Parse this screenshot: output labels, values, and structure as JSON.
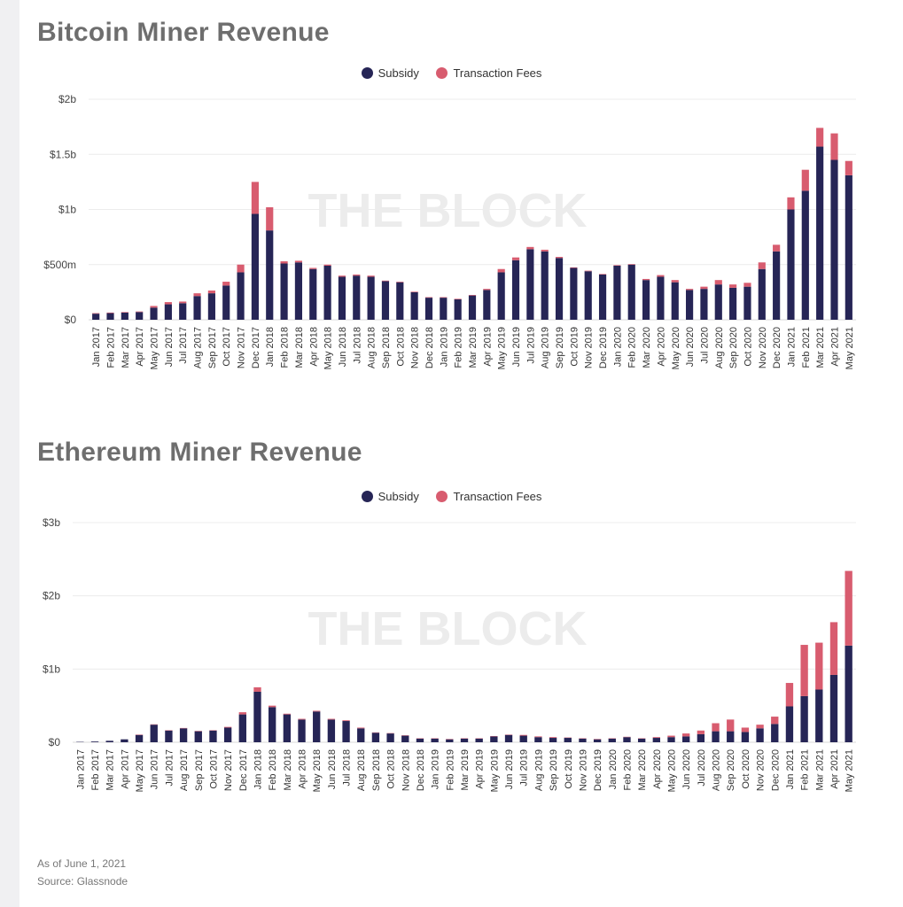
{
  "colors": {
    "subsidy": "#262556",
    "fees": "#d85c6f",
    "grid": "#ececec",
    "watermark": "#ececec"
  },
  "months": [
    "Jan 2017",
    "Feb 2017",
    "Mar 2017",
    "Apr 2017",
    "May 2017",
    "Jun 2017",
    "Jul 2017",
    "Aug 2017",
    "Sep 2017",
    "Oct 2017",
    "Nov 2017",
    "Dec 2017",
    "Jan 2018",
    "Feb 2018",
    "Mar 2018",
    "Apr 2018",
    "May 2018",
    "Jun 2018",
    "Jul 2018",
    "Aug 2018",
    "Sep 2018",
    "Oct 2018",
    "Nov 2018",
    "Dec 2018",
    "Jan 2019",
    "Feb 2019",
    "Mar 2019",
    "Apr 2019",
    "May 2019",
    "Jun 2019",
    "Jul 2019",
    "Aug 2019",
    "Sep 2019",
    "Oct 2019",
    "Nov 2019",
    "Dec 2019",
    "Jan 2020",
    "Feb 2020",
    "Mar 2020",
    "Apr 2020",
    "May 2020",
    "Jun 2020",
    "Jul 2020",
    "Aug 2020",
    "Sep 2020",
    "Oct 2020",
    "Nov 2020",
    "Dec 2020",
    "Jan 2021",
    "Feb 2021",
    "Mar 2021",
    "Apr 2021",
    "May 2021"
  ],
  "chart_data": [
    {
      "type": "bar",
      "stacked": true,
      "title": "Bitcoin Miner Revenue",
      "watermark": "THE BLOCK",
      "legend": [
        "Subsidy",
        "Transaction Fees"
      ],
      "ylim": [
        0,
        2000
      ],
      "yticks": [
        0,
        500,
        1000,
        1500,
        2000
      ],
      "ytick_labels": [
        "$0",
        "$500m",
        "$1b",
        "$1.5b",
        "$2b"
      ],
      "unit": "millions USD",
      "series": [
        {
          "name": "Subsidy",
          "values": [
            55,
            60,
            65,
            70,
            110,
            140,
            150,
            215,
            240,
            310,
            430,
            960,
            810,
            510,
            520,
            460,
            490,
            390,
            400,
            390,
            350,
            340,
            250,
            200,
            200,
            185,
            220,
            270,
            430,
            540,
            640,
            620,
            560,
            470,
            440,
            410,
            490,
            500,
            360,
            390,
            340,
            270,
            280,
            320,
            290,
            300,
            460,
            620,
            1000,
            1170,
            1570,
            1450,
            1310
          ]
        },
        {
          "name": "Transaction Fees",
          "values": [
            5,
            5,
            5,
            5,
            15,
            20,
            15,
            25,
            25,
            35,
            70,
            290,
            210,
            20,
            15,
            10,
            10,
            10,
            10,
            10,
            5,
            5,
            5,
            5,
            5,
            5,
            5,
            10,
            30,
            25,
            20,
            15,
            10,
            5,
            5,
            5,
            5,
            5,
            10,
            15,
            20,
            10,
            20,
            40,
            30,
            35,
            60,
            60,
            110,
            190,
            170,
            240,
            130
          ]
        }
      ]
    },
    {
      "type": "bar",
      "stacked": true,
      "title": "Ethereum Miner Revenue",
      "watermark": "THE BLOCK",
      "legend": [
        "Subsidy",
        "Transaction Fees"
      ],
      "ylim": [
        0,
        3000
      ],
      "yticks": [
        0,
        1000,
        2000,
        3000
      ],
      "ytick_labels": [
        "$0",
        "$1b",
        "$2b",
        "$3b"
      ],
      "unit": "millions USD",
      "series": [
        {
          "name": "Subsidy",
          "values": [
            5,
            10,
            20,
            40,
            100,
            240,
            160,
            190,
            150,
            160,
            200,
            380,
            690,
            480,
            380,
            310,
            420,
            310,
            290,
            190,
            130,
            120,
            90,
            50,
            50,
            40,
            50,
            50,
            80,
            100,
            90,
            70,
            60,
            60,
            50,
            40,
            50,
            70,
            50,
            60,
            70,
            80,
            110,
            150,
            150,
            140,
            190,
            250,
            490,
            630,
            720,
            920,
            1320
          ]
        },
        {
          "name": "Transaction Fees",
          "values": [
            0,
            0,
            0,
            0,
            5,
            5,
            5,
            5,
            5,
            5,
            10,
            30,
            60,
            20,
            10,
            10,
            10,
            10,
            10,
            10,
            5,
            5,
            5,
            5,
            5,
            5,
            5,
            5,
            5,
            5,
            10,
            10,
            10,
            5,
            5,
            5,
            5,
            5,
            5,
            10,
            20,
            40,
            50,
            110,
            160,
            60,
            50,
            100,
            320,
            700,
            640,
            720,
            1020
          ]
        }
      ]
    }
  ],
  "footer": {
    "as_of": "As of June 1, 2021",
    "source": "Source: Glassnode"
  }
}
